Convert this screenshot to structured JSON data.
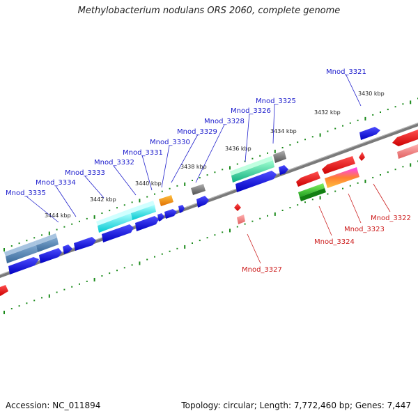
{
  "title": "Methylobacterium nodulans ORS 2060, complete genome",
  "accession_text": "Accession: NC_011894",
  "summary_text": "Topology: circular; Length: 7,772,460 bp; Genes: 7,447",
  "colors": {
    "forward_label": "#1a1acc",
    "reverse_label": "#cc1a1a",
    "backbone": "#808080",
    "tick": "#1a8a1a"
  },
  "scale_labels": [
    "3430 kbp",
    "3432 kbp",
    "3434 kbp",
    "3436 kbp",
    "3438 kbp",
    "3440 kbp",
    "3442 kbp",
    "3444 kbp"
  ],
  "forward_labels": [
    "Mnod_3321",
    "Mnod_3325",
    "Mnod_3326",
    "Mnod_3328",
    "Mnod_3329",
    "Mnod_3330",
    "Mnod_3331",
    "Mnod_3332",
    "Mnod_3333",
    "Mnod_3334",
    "Mnod_3335"
  ],
  "reverse_labels": [
    "Mnod_3322",
    "Mnod_3323",
    "Mnod_3324",
    "Mnod_3327"
  ]
}
